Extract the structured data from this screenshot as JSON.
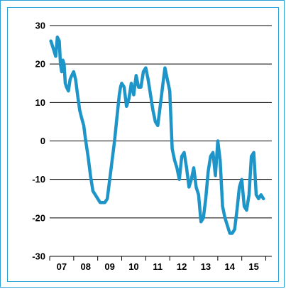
{
  "chart_data": {
    "type": "line",
    "title": "",
    "xlabel": "",
    "ylabel": "",
    "ylim": [
      -30,
      30
    ],
    "yticks": [
      30,
      20,
      10,
      0,
      -10,
      -20,
      -30
    ],
    "xlim": [
      2006.5,
      2015.75
    ],
    "xtick_labels": [
      {
        "label": "07",
        "x": 2007.0
      },
      {
        "label": "08",
        "x": 2008.0
      },
      {
        "label": "09",
        "x": 2009.0
      },
      {
        "label": "10",
        "x": 2010.0
      },
      {
        "label": "11",
        "x": 2011.0
      },
      {
        "label": "12",
        "x": 2012.0
      },
      {
        "label": "13",
        "x": 2013.0
      },
      {
        "label": "14",
        "x": 2014.0
      },
      {
        "label": "15",
        "x": 2015.0
      }
    ],
    "grid": "horizontal",
    "line_color": "#1e95c8",
    "series": [
      {
        "x": [
          2006.55,
          2006.65,
          2006.75,
          2006.82,
          2006.9,
          2006.95,
          2007.0,
          2007.05,
          2007.1,
          2007.15,
          2007.2,
          2007.28,
          2007.35,
          2007.42,
          2007.5,
          2007.58,
          2007.66,
          2007.75,
          2007.83,
          2007.92,
          2008.0,
          2008.1,
          2008.2,
          2008.3,
          2008.4,
          2008.5,
          2008.6,
          2008.7,
          2008.8,
          2008.9,
          2009.0,
          2009.1,
          2009.2,
          2009.3,
          2009.4,
          2009.45,
          2009.5,
          2009.6,
          2009.7,
          2009.8,
          2009.9,
          2010.0,
          2010.1,
          2010.2,
          2010.3,
          2010.4,
          2010.5,
          2010.6,
          2010.7,
          2010.8,
          2010.9,
          2011.0,
          2011.1,
          2011.2,
          2011.3,
          2011.4,
          2011.5,
          2011.6,
          2011.7,
          2011.8,
          2011.9,
          2012.0,
          2012.1,
          2012.2,
          2012.3,
          2012.4,
          2012.5,
          2012.6,
          2012.7,
          2012.8,
          2012.9,
          2013.0,
          2013.1,
          2013.2,
          2013.3,
          2013.4,
          2013.5,
          2013.6,
          2013.7,
          2013.8,
          2013.9,
          2014.0,
          2014.1,
          2014.2,
          2014.3,
          2014.4,
          2014.5,
          2014.6,
          2014.7,
          2014.8,
          2014.9,
          2015.0,
          2015.1,
          2015.2,
          2015.3,
          2015.4
        ],
        "y": [
          26,
          24,
          22,
          27,
          26,
          20,
          18,
          21,
          20,
          15,
          14,
          13,
          16,
          17,
          18,
          16,
          12,
          8,
          6,
          4,
          0,
          -4,
          -9,
          -13,
          -14,
          -15,
          -16,
          -16,
          -16,
          -15,
          -10,
          -5,
          0,
          6,
          12,
          14,
          15,
          14,
          9,
          11,
          15,
          12,
          17,
          14,
          14,
          18,
          19,
          16,
          12,
          8,
          5,
          4,
          9,
          14,
          19,
          16,
          13,
          -2,
          -5,
          -7,
          -10,
          -4,
          -3,
          -7,
          -12,
          -10,
          -7,
          -12,
          -14,
          -21,
          -20,
          -15,
          -8,
          -4,
          -3,
          -9,
          0,
          -5,
          -17,
          -20,
          -22,
          -24,
          -24,
          -23,
          -18,
          -12,
          -10,
          -17,
          -18,
          -14,
          -4,
          -3,
          -14,
          -15,
          -14,
          -15
        ]
      }
    ]
  }
}
